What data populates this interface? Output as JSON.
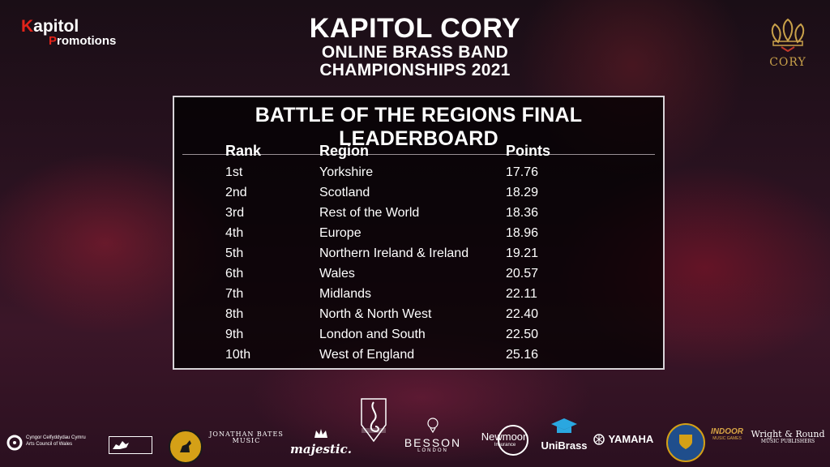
{
  "brand": {
    "kapitol_line1_red": "K",
    "kapitol_line1_rest": "apitol",
    "kapitol_line2_red": "P",
    "kapitol_line2_rest": "romotions"
  },
  "title": {
    "line1": "KAPITOL CORY",
    "line2": "ONLINE BRASS BAND",
    "line3": "CHAMPIONSHIPS 2021"
  },
  "cory_logo": {
    "word": "CORY"
  },
  "leaderboard": {
    "heading": "BATTLE OF THE REGIONS FINAL LEADERBOARD",
    "columns": {
      "rank": "Rank",
      "region": "Region",
      "points": "Points"
    },
    "rows": [
      {
        "rank": "1st",
        "region": "Yorkshire",
        "points": "17.76"
      },
      {
        "rank": "2nd",
        "region": "Scotland",
        "points": "18.29"
      },
      {
        "rank": "3rd",
        "region": "Rest of the World",
        "points": "18.36"
      },
      {
        "rank": "4th",
        "region": "Europe",
        "points": "18.96"
      },
      {
        "rank": "5th",
        "region": "Northern Ireland & Ireland",
        "points": "19.21"
      },
      {
        "rank": "6th",
        "region": "Wales",
        "points": "20.57"
      },
      {
        "rank": "7th",
        "region": "Midlands",
        "points": "22.11"
      },
      {
        "rank": "8th",
        "region": "North & North West",
        "points": "22.40"
      },
      {
        "rank": "9th",
        "region": "London and South",
        "points": "22.50"
      },
      {
        "rank": "10th",
        "region": "West of England",
        "points": "25.16"
      }
    ]
  },
  "sponsors": {
    "arts_council_1": "Cyngor Celfyddydau Cymru",
    "arts_council_2": "Arts Council of Wales",
    "jonathan_bates_1": "JONATHAN BATES",
    "jonathan_bates_2": "MUSIC",
    "majestic": "majestic.",
    "besson": "BESSON",
    "besson_sub": "LONDON",
    "newmoon": "Newmoon",
    "newmoon_sub": "Insurance",
    "unibrass": "UniBrass",
    "yamaha": "YAMAHA",
    "indoor": "INDOOR",
    "indoor_sub": "MUSIC GAMES",
    "wright_round": "Wright & Round",
    "wright_round_sub": "MUSIC PUBLISHERS"
  },
  "colors": {
    "accent_red": "#e2231a",
    "cory_gold": "#c9a14a"
  }
}
